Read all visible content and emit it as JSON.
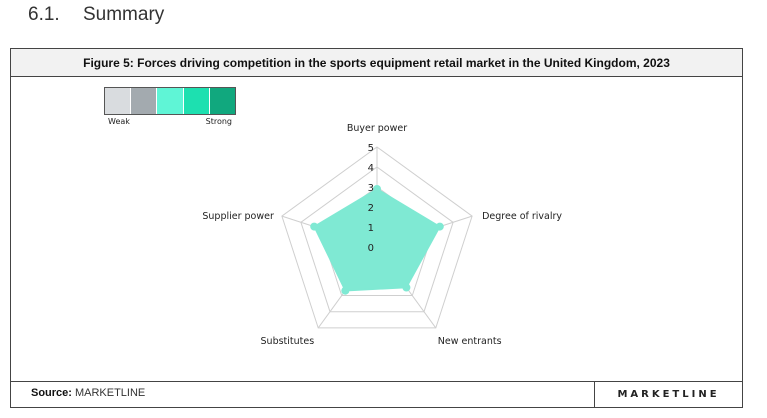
{
  "section": {
    "number": "6.1.",
    "title": "Summary"
  },
  "figure": {
    "title": "Figure 5: Forces driving competition in the sports equipment retail market in the United Kingdom, 2023"
  },
  "legend": {
    "weak_label": "Weak",
    "strong_label": "Strong",
    "colors": [
      "#d9dcdf",
      "#a3aaaf",
      "#5ff5d6",
      "#1de0b0",
      "#11a87e"
    ]
  },
  "footer": {
    "source_label": "Source:",
    "source_value": "MARKETLINE",
    "brand": "MARKETLINE"
  },
  "chart_data": {
    "type": "radar",
    "categories": [
      "Buyer power",
      "Degree of rivalry",
      "New entrants",
      "Substitutes",
      "Supplier power"
    ],
    "values": [
      2.9,
      3.3,
      2.5,
      2.7,
      3.3
    ],
    "rmin": 0,
    "rmax": 5,
    "ticks": [
      "0",
      "1",
      "2",
      "3",
      "4",
      "5"
    ],
    "fill_color": "#7fe9d3",
    "grid": true
  }
}
